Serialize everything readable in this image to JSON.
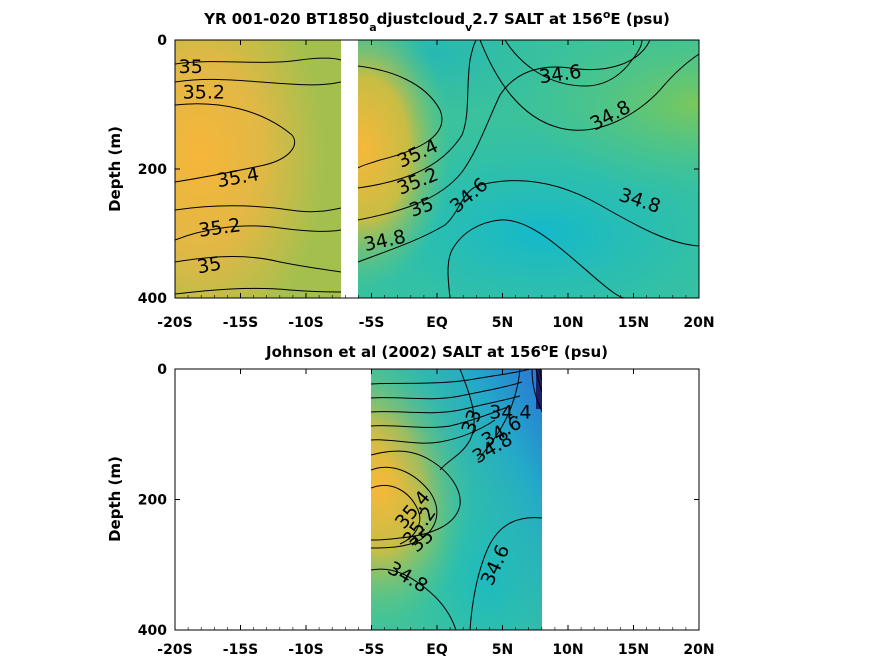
{
  "chart_data": [
    {
      "type": "heatmap",
      "title_main": "YR 001-020 BT1850",
      "title_sub1": "a",
      "title_mid": "djustcloud",
      "title_sub2": "v",
      "title_end": "2.7 SALT at 156",
      "title_sup": "o",
      "title_tail": "E (psu)",
      "ylabel": "Depth (m)",
      "x_ticks": [
        "-20S",
        "-15S",
        "-10S",
        "-5S",
        "EQ",
        "5N",
        "10N",
        "15N",
        "20N"
      ],
      "x_tick_values": [
        -20,
        -15,
        -10,
        -5,
        0,
        5,
        10,
        15,
        20
      ],
      "y_ticks": [
        "0",
        "200",
        "400"
      ],
      "y_tick_values": [
        0,
        200,
        400
      ],
      "xlim": [
        -20,
        20
      ],
      "ylim": [
        0,
        400
      ],
      "y_reversed": true,
      "data_gap": [
        -7.3,
        -6.2
      ],
      "contour_labels": [
        {
          "text": "35",
          "lat": -18.8,
          "depth": 40
        },
        {
          "text": "35.2",
          "lat": -17.8,
          "depth": 80
        },
        {
          "text": "35.4",
          "lat": -15.2,
          "depth": 212
        },
        {
          "text": "35.2",
          "lat": -16.6,
          "depth": 290
        },
        {
          "text": "35",
          "lat": -17.4,
          "depth": 348
        },
        {
          "text": "35.4",
          "lat": -1.5,
          "depth": 175
        },
        {
          "text": "35.2",
          "lat": -1.5,
          "depth": 218
        },
        {
          "text": "35",
          "lat": -1.2,
          "depth": 258
        },
        {
          "text": "34.8",
          "lat": -4.0,
          "depth": 310
        },
        {
          "text": "34.6",
          "lat": 2.4,
          "depth": 240
        },
        {
          "text": "34.6",
          "lat": 9.4,
          "depth": 52
        },
        {
          "text": "34.8",
          "lat": 13.2,
          "depth": 116
        },
        {
          "text": "34.8",
          "lat": 15.5,
          "depth": 248
        }
      ]
    },
    {
      "type": "heatmap",
      "title_main": "Johnson et al (2002) SALT at 156",
      "title_sup": "o",
      "title_tail": "E (psu)",
      "ylabel": "Depth (m)",
      "x_ticks": [
        "-20S",
        "-15S",
        "-10S",
        "-5S",
        "EQ",
        "5N",
        "10N",
        "15N",
        "20N"
      ],
      "x_tick_values": [
        -20,
        -15,
        -10,
        -5,
        0,
        5,
        10,
        15,
        20
      ],
      "y_ticks": [
        "0",
        "200",
        "400"
      ],
      "y_tick_values": [
        0,
        200,
        400
      ],
      "xlim": [
        -20,
        20
      ],
      "ylim": [
        0,
        400
      ],
      "y_reversed": true,
      "data_extent": [
        -5,
        8
      ],
      "contour_labels": [
        {
          "text": "34.4",
          "lat": 5.6,
          "depth": 65
        },
        {
          "text": "34.6",
          "lat": 4.9,
          "depth": 95
        },
        {
          "text": "34.8",
          "lat": 4.2,
          "depth": 120
        },
        {
          "text": "33",
          "lat": 2.6,
          "depth": 80
        },
        {
          "text": "35.4",
          "lat": -1.9,
          "depth": 215
        },
        {
          "text": "35.2",
          "lat": -1.4,
          "depth": 240
        },
        {
          "text": "35",
          "lat": -1.2,
          "depth": 262
        },
        {
          "text": "34.8",
          "lat": -2.2,
          "depth": 318
        },
        {
          "text": "34.6",
          "lat": 4.4,
          "depth": 300
        }
      ]
    }
  ]
}
